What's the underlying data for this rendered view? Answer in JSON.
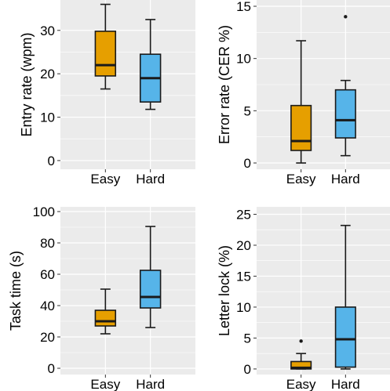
{
  "chart_data": [
    {
      "type": "boxplot",
      "ylabel": "Entry rate (wpm)",
      "categories": [
        "Easy",
        "Hard"
      ],
      "yticks": [
        0,
        10,
        20,
        30
      ],
      "ylim": [
        -2,
        37
      ],
      "boxes": [
        {
          "category": "Easy",
          "min": 16.5,
          "q1": 19.5,
          "median": 22,
          "q3": 29.8,
          "max": 36,
          "outliers": []
        },
        {
          "category": "Hard",
          "min": 11.8,
          "q1": 13.5,
          "median": 19,
          "q3": 24.5,
          "max": 32.5,
          "outliers": []
        }
      ]
    },
    {
      "type": "boxplot",
      "ylabel": "Error rate (CER %)",
      "categories": [
        "Easy",
        "Hard"
      ],
      "yticks": [
        0,
        5,
        10,
        15
      ],
      "ylim": [
        -0.6,
        15.6
      ],
      "boxes": [
        {
          "category": "Easy",
          "min": 0,
          "q1": 1.2,
          "median": 2.1,
          "q3": 5.5,
          "max": 11.7,
          "outliers": []
        },
        {
          "category": "Hard",
          "min": 0.7,
          "q1": 2.4,
          "median": 4.1,
          "q3": 7,
          "max": 7.9,
          "outliers": [
            14
          ]
        }
      ]
    },
    {
      "type": "boxplot",
      "ylabel": "Task time (s)",
      "categories": [
        "Easy",
        "Hard"
      ],
      "yticks": [
        0,
        20,
        40,
        60,
        80,
        100
      ],
      "ylim": [
        -4,
        103
      ],
      "boxes": [
        {
          "category": "Easy",
          "min": 22,
          "q1": 27,
          "median": 30,
          "q3": 37,
          "max": 50.5,
          "outliers": []
        },
        {
          "category": "Hard",
          "min": 26,
          "q1": 38.5,
          "median": 45.5,
          "q3": 62.5,
          "max": 90.5,
          "outliers": []
        }
      ]
    },
    {
      "type": "boxplot",
      "ylabel": "Letter lock (%)",
      "categories": [
        "Easy",
        "Hard"
      ],
      "yticks": [
        0,
        5,
        10,
        15,
        20,
        25
      ],
      "ylim": [
        -0.9,
        26.2
      ],
      "boxes": [
        {
          "category": "Easy",
          "min": 0,
          "q1": 0,
          "median": 0.2,
          "q3": 1.2,
          "max": 2.5,
          "outliers": [
            4.5
          ]
        },
        {
          "category": "Hard",
          "min": 0,
          "q1": 0.3,
          "median": 4.8,
          "q3": 10,
          "max": 23.2,
          "outliers": []
        }
      ]
    }
  ],
  "colors": {
    "panel_bg": "#ebebeb",
    "grid": "#ffffff",
    "easy_fill": "#e69f00",
    "hard_fill": "#56b4e9",
    "box_line": "#1a1a1a"
  }
}
